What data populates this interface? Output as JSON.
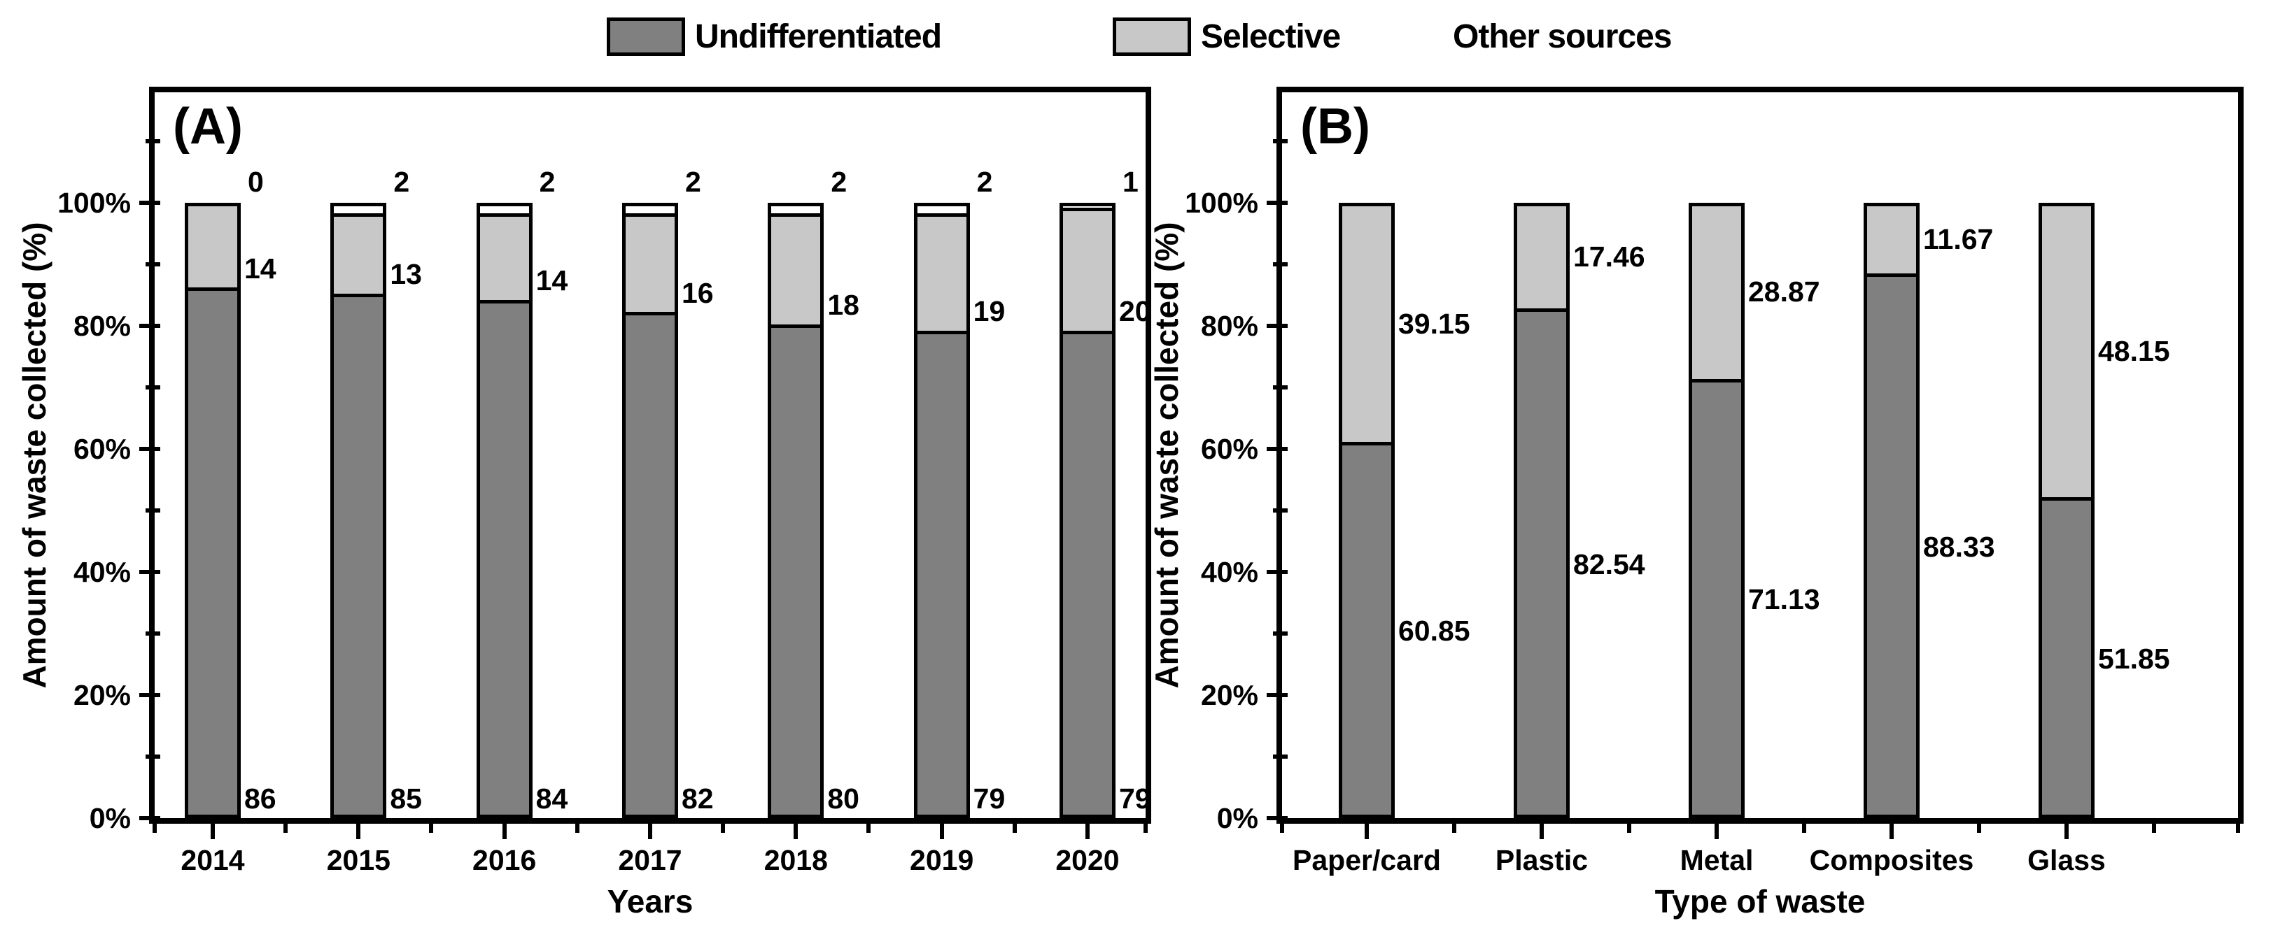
{
  "legend": {
    "items": [
      {
        "label": "Undifferentiated",
        "swatch_color": "#808080"
      },
      {
        "label": "Selective",
        "swatch_color": "#c8c8c8"
      },
      {
        "label": "Other sources",
        "swatch_color": "#ffffff"
      }
    ]
  },
  "colors": {
    "undifferentiated": "#808080",
    "selective": "#c8c8c8",
    "other_sources": "#ffffff",
    "axis": "#000000"
  },
  "chart_data": [
    {
      "type": "bar",
      "stacked": true,
      "panel_label": "(A)",
      "xlabel": "Years",
      "ylabel": "Amount of waste collected (%)",
      "categories": [
        "2014",
        "2015",
        "2016",
        "2017",
        "2018",
        "2019",
        "2020"
      ],
      "series": [
        {
          "name": "Undifferentiated",
          "color": "#808080",
          "values": [
            86,
            85,
            84,
            82,
            80,
            79,
            79
          ]
        },
        {
          "name": "Selective",
          "color": "#c8c8c8",
          "values": [
            14,
            13,
            14,
            16,
            18,
            19,
            20
          ]
        },
        {
          "name": "Other sources",
          "color": "#ffffff",
          "values": [
            0,
            2,
            2,
            2,
            2,
            2,
            1
          ]
        }
      ],
      "ylim": [
        0,
        100
      ],
      "ytick_values": [
        0,
        20,
        40,
        60,
        80,
        100
      ],
      "ytick_labels": [
        "0%",
        "20%",
        "40%",
        "60%",
        "80%",
        "100%"
      ],
      "value_label_placement": "segment-edge",
      "grid": false,
      "legend_position": "top"
    },
    {
      "type": "bar",
      "stacked": true,
      "panel_label": "(B)",
      "xlabel": "Type of waste",
      "ylabel": "Amount of waste collected (%)",
      "categories": [
        "Paper/card",
        "Plastic",
        "Metal",
        "Composites",
        "Glass"
      ],
      "series": [
        {
          "name": "Undifferentiated",
          "color": "#808080",
          "values": [
            60.85,
            82.54,
            71.13,
            88.33,
            51.85
          ]
        },
        {
          "name": "Selective",
          "color": "#c8c8c8",
          "values": [
            39.15,
            17.46,
            28.87,
            11.67,
            48.15
          ]
        }
      ],
      "ylim": [
        0,
        100
      ],
      "ytick_values": [
        0,
        20,
        40,
        60,
        80,
        100
      ],
      "ytick_labels": [
        "0%",
        "20%",
        "40%",
        "60%",
        "80%",
        "100%"
      ],
      "value_label_placement": "segment-middle",
      "grid": false,
      "legend_position": "top"
    }
  ]
}
